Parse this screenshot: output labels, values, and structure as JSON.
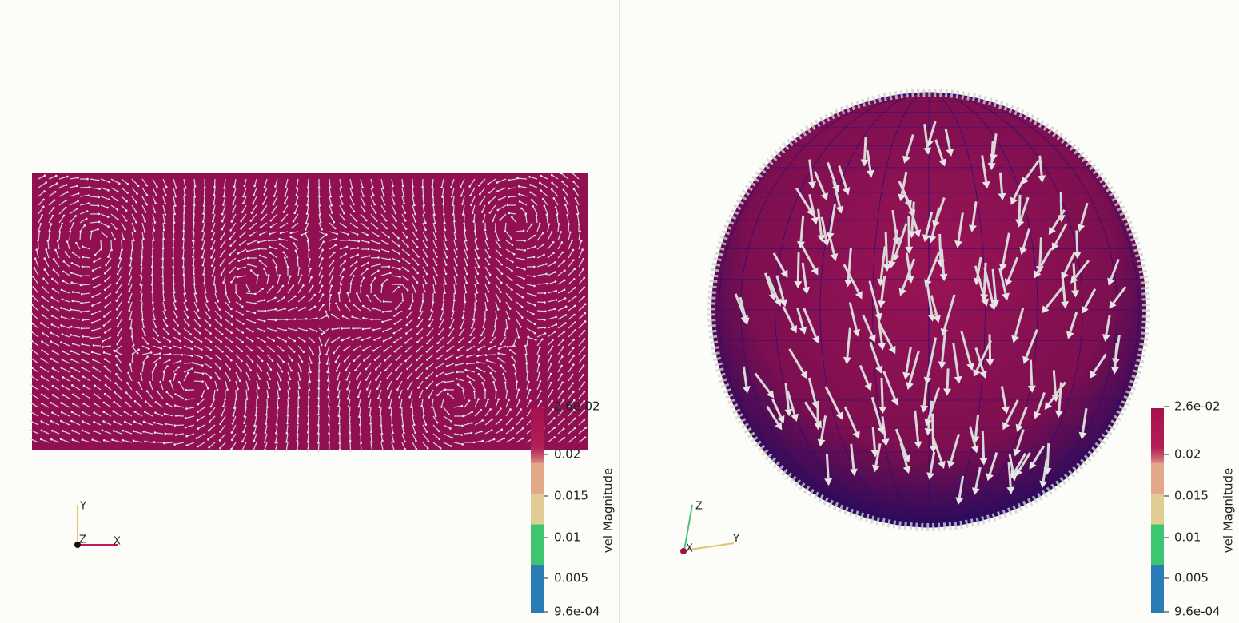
{
  "views": [
    {
      "colorbar": {
        "title": "vel Magnitude",
        "labels": [
          "2.6e-02",
          "0.02",
          "0.015",
          "0.01",
          "0.005",
          "9.6e-04"
        ]
      },
      "axes": {
        "up": "Y",
        "depth": "Z",
        "right": "X"
      }
    },
    {
      "colorbar": {
        "title": "vel Magnitude",
        "labels": [
          "2.6e-02",
          "0.02",
          "0.015",
          "0.01",
          "0.005",
          "9.6e-04"
        ]
      },
      "axes": {
        "up": "Z",
        "depth": "X",
        "right": "Y"
      }
    }
  ]
}
